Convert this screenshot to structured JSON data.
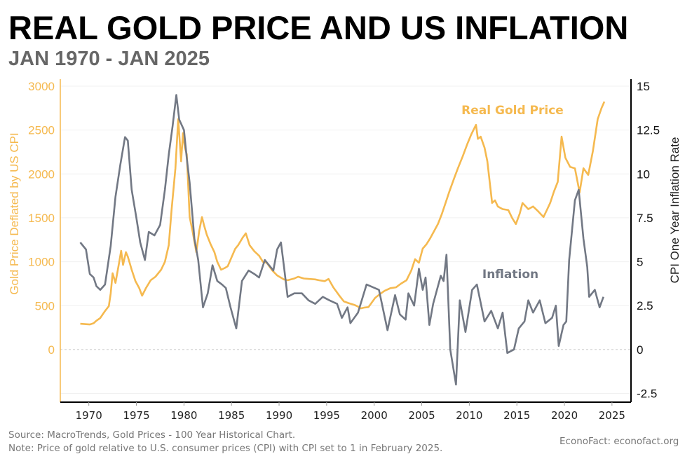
{
  "header": {
    "title": "REAL GOLD PRICE AND US INFLATION",
    "subtitle": "JAN 1970 - JAN 2025"
  },
  "footer": {
    "source": "Source: MacroTrends, Gold Prices - 100 Year Historical Chart.",
    "note": "Note: Price of gold relative to U.S. consumer prices (CPI) with CPI set to 1 in February 2025.",
    "credit": "EconoFact:   econofact.org"
  },
  "chart_data": {
    "type": "line",
    "title": "REAL GOLD PRICE AND US INFLATION",
    "subtitle": "JAN 1970 - JAN 2025",
    "xlabel": "",
    "xlim": [
      1967,
      2027
    ],
    "x_ticks": [
      "1970",
      "1975",
      "1980",
      "1985",
      "1990",
      "1995",
      "2000",
      "2005",
      "2010",
      "2015",
      "2020",
      "2025"
    ],
    "y_left": {
      "label": "Gold Price Deflated by US CPI",
      "ylim": [
        -598,
        3080
      ],
      "ticks": [
        "3000",
        "2500",
        "2000",
        "1500",
        "1000",
        "500",
        "0"
      ],
      "color": "#F5B94F"
    },
    "y_right": {
      "label": "CPI One Year Inflation Rate",
      "ylim": [
        -3,
        15.4
      ],
      "ticks": [
        "15",
        "12.5",
        "10",
        "7.5",
        "5",
        "2.5",
        "0",
        "-2.5"
      ],
      "color": "#000000"
    },
    "grid": true,
    "zero_line": "dashed",
    "series": [
      {
        "name": "Real Gold Price",
        "axis": "left",
        "color": "#F5B94F",
        "points": [
          [
            1969.1,
            295
          ],
          [
            1969.7,
            290
          ],
          [
            1970.1,
            287
          ],
          [
            1970.5,
            300
          ],
          [
            1970.8,
            330
          ],
          [
            1971.2,
            360
          ],
          [
            1971.7,
            440
          ],
          [
            1972.1,
            495
          ],
          [
            1972.3,
            640
          ],
          [
            1972.5,
            870
          ],
          [
            1972.8,
            760
          ],
          [
            1973.2,
            1000
          ],
          [
            1973.4,
            1125
          ],
          [
            1973.6,
            965
          ],
          [
            1973.9,
            1110
          ],
          [
            1974.1,
            1060
          ],
          [
            1974.5,
            910
          ],
          [
            1974.9,
            780
          ],
          [
            1975.3,
            700
          ],
          [
            1975.6,
            615
          ],
          [
            1976.0,
            700
          ],
          [
            1976.5,
            790
          ],
          [
            1977.0,
            830
          ],
          [
            1977.6,
            910
          ],
          [
            1978.0,
            1000
          ],
          [
            1978.4,
            1190
          ],
          [
            1978.7,
            1590
          ],
          [
            1979.1,
            2065
          ],
          [
            1979.4,
            2625
          ],
          [
            1979.7,
            2145
          ],
          [
            1979.9,
            2465
          ],
          [
            1980.1,
            2300
          ],
          [
            1980.3,
            2225
          ],
          [
            1980.6,
            1510
          ],
          [
            1980.9,
            1350
          ],
          [
            1981.3,
            1110
          ],
          [
            1981.6,
            1350
          ],
          [
            1981.9,
            1510
          ],
          [
            1982.1,
            1420
          ],
          [
            1982.4,
            1310
          ],
          [
            1982.8,
            1200
          ],
          [
            1983.2,
            1110
          ],
          [
            1983.5,
            1000
          ],
          [
            1983.9,
            910
          ],
          [
            1984.3,
            930
          ],
          [
            1984.6,
            950
          ],
          [
            1985.0,
            1050
          ],
          [
            1985.4,
            1150
          ],
          [
            1985.7,
            1190
          ],
          [
            1986.2,
            1280
          ],
          [
            1986.5,
            1325
          ],
          [
            1986.9,
            1190
          ],
          [
            1987.4,
            1120
          ],
          [
            1987.9,
            1070
          ],
          [
            1988.3,
            1000
          ],
          [
            1988.7,
            990
          ],
          [
            1989.3,
            900
          ],
          [
            1989.8,
            845
          ],
          [
            1990.5,
            800
          ],
          [
            1990.9,
            790
          ],
          [
            1991.6,
            810
          ],
          [
            1992.0,
            830
          ],
          [
            1992.6,
            810
          ],
          [
            1993.1,
            805
          ],
          [
            1993.8,
            800
          ],
          [
            1994.2,
            790
          ],
          [
            1994.8,
            780
          ],
          [
            1995.2,
            805
          ],
          [
            1995.7,
            710
          ],
          [
            1996.3,
            620
          ],
          [
            1996.8,
            550
          ],
          [
            1997.3,
            530
          ],
          [
            1997.9,
            510
          ],
          [
            1998.3,
            490
          ],
          [
            1998.6,
            470
          ],
          [
            1999.0,
            480
          ],
          [
            1999.4,
            485
          ],
          [
            2000.1,
            590
          ],
          [
            2000.7,
            640
          ],
          [
            2001.1,
            670
          ],
          [
            2001.7,
            700
          ],
          [
            2002.3,
            710
          ],
          [
            2002.8,
            750
          ],
          [
            2003.4,
            790
          ],
          [
            2003.9,
            900
          ],
          [
            2004.3,
            1030
          ],
          [
            2004.7,
            990
          ],
          [
            2005.1,
            1150
          ],
          [
            2005.5,
            1200
          ],
          [
            2005.9,
            1270
          ],
          [
            2006.3,
            1350
          ],
          [
            2006.7,
            1430
          ],
          [
            2007.1,
            1540
          ],
          [
            2007.5,
            1670
          ],
          [
            2007.9,
            1800
          ],
          [
            2008.4,
            1950
          ],
          [
            2008.8,
            2065
          ],
          [
            2009.3,
            2200
          ],
          [
            2009.8,
            2345
          ],
          [
            2010.2,
            2450
          ],
          [
            2010.7,
            2560
          ],
          [
            2010.9,
            2400
          ],
          [
            2011.2,
            2425
          ],
          [
            2011.6,
            2300
          ],
          [
            2011.9,
            2145
          ],
          [
            2012.4,
            1670
          ],
          [
            2012.7,
            1700
          ],
          [
            2013.0,
            1630
          ],
          [
            2013.5,
            1600
          ],
          [
            2014.1,
            1590
          ],
          [
            2014.5,
            1500
          ],
          [
            2014.9,
            1430
          ],
          [
            2015.3,
            1550
          ],
          [
            2015.6,
            1670
          ],
          [
            2016.2,
            1600
          ],
          [
            2016.7,
            1630
          ],
          [
            2017.2,
            1580
          ],
          [
            2017.8,
            1510
          ],
          [
            2018.2,
            1600
          ],
          [
            2018.5,
            1670
          ],
          [
            2018.9,
            1800
          ],
          [
            2019.3,
            1910
          ],
          [
            2019.7,
            2425
          ],
          [
            2020.1,
            2185
          ],
          [
            2020.6,
            2080
          ],
          [
            2021.1,
            2065
          ],
          [
            2021.6,
            1790
          ],
          [
            2022.0,
            2065
          ],
          [
            2022.5,
            1990
          ],
          [
            2023.0,
            2265
          ],
          [
            2023.5,
            2625
          ],
          [
            2023.9,
            2750
          ],
          [
            2024.2,
            2825
          ]
        ]
      },
      {
        "name": "Inflation",
        "axis": "right",
        "color": "#727884",
        "points": [
          [
            1969.1,
            6.1
          ],
          [
            1969.7,
            5.7
          ],
          [
            1970.1,
            4.3
          ],
          [
            1970.5,
            4.1
          ],
          [
            1970.8,
            3.6
          ],
          [
            1971.2,
            3.4
          ],
          [
            1971.7,
            3.7
          ],
          [
            1972.3,
            5.9
          ],
          [
            1972.8,
            8.7
          ],
          [
            1973.3,
            10.5
          ],
          [
            1973.8,
            12.1
          ],
          [
            1974.1,
            11.9
          ],
          [
            1974.5,
            9.1
          ],
          [
            1975.0,
            7.5
          ],
          [
            1975.4,
            6.1
          ],
          [
            1975.9,
            5.1
          ],
          [
            1976.3,
            6.7
          ],
          [
            1976.9,
            6.5
          ],
          [
            1977.5,
            7.1
          ],
          [
            1978.0,
            9.1
          ],
          [
            1978.4,
            11.1
          ],
          [
            1978.8,
            12.7
          ],
          [
            1979.2,
            14.5
          ],
          [
            1979.5,
            13.1
          ],
          [
            1980.0,
            12.5
          ],
          [
            1980.3,
            10.9
          ],
          [
            1980.6,
            9.5
          ],
          [
            1981.1,
            6.3
          ],
          [
            1981.5,
            5.1
          ],
          [
            1982.0,
            2.4
          ],
          [
            1982.5,
            3.2
          ],
          [
            1983.0,
            4.8
          ],
          [
            1983.5,
            3.9
          ],
          [
            1984.0,
            3.7
          ],
          [
            1984.4,
            3.5
          ],
          [
            1984.9,
            2.4
          ],
          [
            1985.5,
            1.2
          ],
          [
            1986.1,
            3.9
          ],
          [
            1986.8,
            4.5
          ],
          [
            1987.4,
            4.3
          ],
          [
            1987.9,
            4.1
          ],
          [
            1988.5,
            5.1
          ],
          [
            1989.4,
            4.5
          ],
          [
            1989.8,
            5.7
          ],
          [
            1990.2,
            6.1
          ],
          [
            1990.5,
            4.8
          ],
          [
            1990.9,
            3.0
          ],
          [
            1991.6,
            3.2
          ],
          [
            1992.4,
            3.2
          ],
          [
            1993.1,
            2.8
          ],
          [
            1993.8,
            2.6
          ],
          [
            1994.6,
            3.0
          ],
          [
            1995.3,
            2.8
          ],
          [
            1996.1,
            2.6
          ],
          [
            1996.6,
            1.8
          ],
          [
            1997.2,
            2.4
          ],
          [
            1997.5,
            1.5
          ],
          [
            1998.3,
            2.1
          ],
          [
            1999.2,
            3.7
          ],
          [
            2000.5,
            3.4
          ],
          [
            2001.4,
            1.1
          ],
          [
            2002.2,
            3.1
          ],
          [
            2002.7,
            2.0
          ],
          [
            2003.3,
            1.7
          ],
          [
            2003.6,
            3.2
          ],
          [
            2004.2,
            2.5
          ],
          [
            2004.7,
            4.6
          ],
          [
            2005.1,
            3.4
          ],
          [
            2005.4,
            4.1
          ],
          [
            2005.8,
            1.4
          ],
          [
            2006.2,
            2.6
          ],
          [
            2007.0,
            4.2
          ],
          [
            2007.3,
            3.9
          ],
          [
            2007.6,
            5.4
          ],
          [
            2008.0,
            0.0
          ],
          [
            2008.6,
            -2.0
          ],
          [
            2009.0,
            2.8
          ],
          [
            2009.6,
            1.0
          ],
          [
            2010.3,
            3.4
          ],
          [
            2010.8,
            3.7
          ],
          [
            2011.6,
            1.6
          ],
          [
            2012.3,
            2.2
          ],
          [
            2013.0,
            1.2
          ],
          [
            2013.5,
            2.1
          ],
          [
            2014.0,
            -0.2
          ],
          [
            2014.7,
            0.0
          ],
          [
            2015.2,
            1.2
          ],
          [
            2015.8,
            1.6
          ],
          [
            2016.2,
            2.8
          ],
          [
            2016.7,
            2.1
          ],
          [
            2017.4,
            2.8
          ],
          [
            2018.0,
            1.5
          ],
          [
            2018.7,
            1.8
          ],
          [
            2019.1,
            2.5
          ],
          [
            2019.4,
            0.2
          ],
          [
            2019.9,
            1.4
          ],
          [
            2020.2,
            1.6
          ],
          [
            2020.5,
            5.1
          ],
          [
            2021.1,
            8.5
          ],
          [
            2021.5,
            9.1
          ],
          [
            2022.0,
            6.3
          ],
          [
            2022.4,
            4.7
          ],
          [
            2022.6,
            3.0
          ],
          [
            2023.2,
            3.4
          ],
          [
            2023.7,
            2.4
          ],
          [
            2024.1,
            3.0
          ]
        ]
      }
    ],
    "annotations": [
      {
        "text": "Real Gold Price",
        "series": "Real Gold Price",
        "color": "#F5B94F"
      },
      {
        "text": "Inflation",
        "series": "Inflation",
        "color": "#727884"
      }
    ]
  }
}
